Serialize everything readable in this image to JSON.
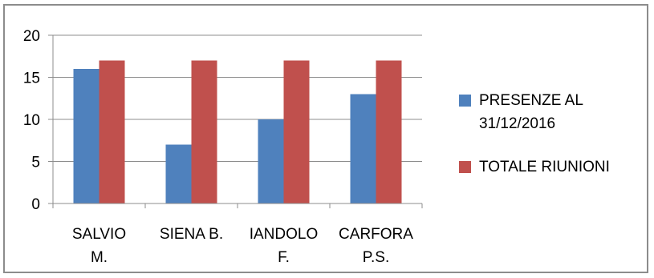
{
  "chart_data": {
    "type": "bar",
    "categories": [
      [
        "SALVIO",
        "M."
      ],
      [
        "SIENA B.",
        ""
      ],
      [
        "IANDOLO",
        "F."
      ],
      [
        "CARFORA",
        "P.S."
      ]
    ],
    "series": [
      {
        "name": [
          "PRESENZE AL",
          "31/12/2016"
        ],
        "values": [
          16,
          7,
          10,
          13
        ],
        "color": "#4f81bd"
      },
      {
        "name": [
          "TOTALE RIUNIONI"
        ],
        "values": [
          17,
          17,
          17,
          17
        ],
        "color": "#c0504d"
      }
    ],
    "yticks": [
      "0",
      "5",
      "10",
      "15",
      "20"
    ],
    "ylim": [
      0,
      20
    ],
    "grid": true,
    "legend_position": "right"
  }
}
